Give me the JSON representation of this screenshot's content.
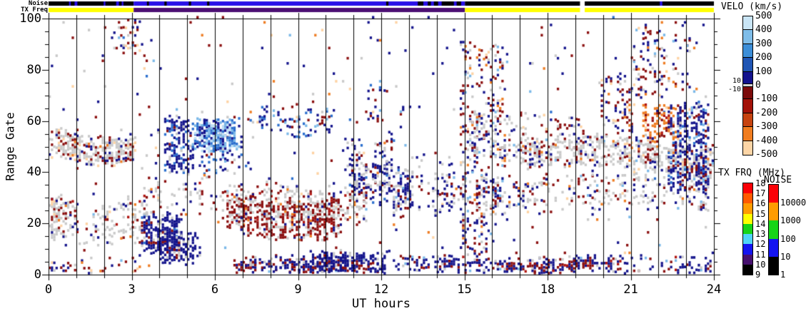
{
  "strips": {
    "noise": {
      "label": "Noise",
      "segments": [
        {
          "u0": 0,
          "u1": 3.07,
          "color": "#000000"
        },
        {
          "u0": 3.07,
          "u1": 15.02,
          "color": "#2a12e8"
        },
        {
          "u0": 15.02,
          "u1": 19.17,
          "color": "#000000"
        },
        {
          "u0": 19.34,
          "u1": 24,
          "color": "#000000"
        }
      ],
      "dashes": [
        {
          "u0": 0.74,
          "u1": 0.8,
          "color": "#2a12e8"
        },
        {
          "u0": 0.94,
          "u1": 1.04,
          "color": "#2a12e8"
        },
        {
          "u0": 1.99,
          "u1": 2.05,
          "color": "#2a12e8"
        },
        {
          "u0": 2.44,
          "u1": 2.54,
          "color": "#2a12e8"
        },
        {
          "u0": 2.64,
          "u1": 2.7,
          "color": "#2a12e8"
        },
        {
          "u0": 3.55,
          "u1": 3.62,
          "color": "#000000"
        },
        {
          "u0": 4.18,
          "u1": 4.26,
          "color": "#000000"
        },
        {
          "u0": 5.06,
          "u1": 5.14,
          "color": "#000000"
        },
        {
          "u0": 5.72,
          "u1": 5.8,
          "color": "#000000"
        },
        {
          "u0": 12.18,
          "u1": 12.26,
          "color": "#000000"
        },
        {
          "u0": 13.32,
          "u1": 13.52,
          "color": "#000000"
        },
        {
          "u0": 13.68,
          "u1": 13.79,
          "color": "#000000"
        },
        {
          "u0": 13.9,
          "u1": 14.05,
          "color": "#000000"
        },
        {
          "u0": 14.18,
          "u1": 14.62,
          "color": "#000000"
        },
        {
          "u0": 14.72,
          "u1": 14.88,
          "color": "#000000"
        },
        {
          "u0": 22.05,
          "u1": 22.14,
          "color": "#2a12e8"
        }
      ]
    },
    "txfreq": {
      "label": "TX Freq",
      "segments": [
        {
          "u0": 0,
          "u1": 3.07,
          "color": "#ffff00"
        },
        {
          "u0": 3.07,
          "u1": 15.02,
          "color": "#4c0f73"
        },
        {
          "u0": 15.02,
          "u1": 19.17,
          "color": "#ffff00"
        },
        {
          "u0": 19.34,
          "u1": 24,
          "color": "#ffff00"
        }
      ],
      "dashes": []
    }
  },
  "axes": {
    "x": {
      "title": "UT hours",
      "min": 0,
      "max": 24,
      "major_ticks": [
        0,
        3,
        6,
        9,
        12,
        15,
        18,
        21,
        24
      ],
      "minor_step": 1
    },
    "y": {
      "title": "Range Gate",
      "min": 0,
      "max": 100,
      "major_ticks": [
        0,
        20,
        40,
        60,
        80,
        100
      ],
      "minor_step": 5
    }
  },
  "colorbars": {
    "velo": {
      "title": "VELO (km/s)",
      "tick_labels": [
        "500",
        "400",
        "300",
        "200",
        "100",
        "0",
        "-100",
        "-200",
        "-300",
        "-400",
        "-500"
      ],
      "tick_values": [
        500,
        400,
        300,
        200,
        100,
        0,
        -100,
        -200,
        -300,
        -400,
        -500
      ],
      "near_zero_labels": [
        "10",
        "-10"
      ],
      "segments": [
        {
          "from": 500,
          "to": 400,
          "color": "#c9e5f6"
        },
        {
          "from": 400,
          "to": 300,
          "color": "#7fbde9"
        },
        {
          "from": 300,
          "to": 200,
          "color": "#3c8ed8"
        },
        {
          "from": 200,
          "to": 100,
          "color": "#1f55b4"
        },
        {
          "from": 100,
          "to": 10,
          "color": "#13128e"
        },
        {
          "from": 10,
          "to": -10,
          "color": "#d4d4d4"
        },
        {
          "from": -10,
          "to": -100,
          "color": "#7c0a0a"
        },
        {
          "from": -100,
          "to": -200,
          "color": "#a31208"
        },
        {
          "from": -200,
          "to": -300,
          "color": "#c64310"
        },
        {
          "from": -300,
          "to": -400,
          "color": "#f07d20"
        },
        {
          "from": -400,
          "to": -500,
          "color": "#fcd5a6"
        }
      ]
    },
    "txfrq": {
      "title": "TX FRQ (MHz)",
      "tick_labels": [
        "18",
        "17",
        "16",
        "15",
        "14",
        "13",
        "12",
        "11",
        "10",
        "9"
      ],
      "segments": [
        {
          "color": "#fb0006"
        },
        {
          "color": "#ff5a00"
        },
        {
          "color": "#ff9c00"
        },
        {
          "color": "#ffff00"
        },
        {
          "color": "#17d417"
        },
        {
          "color": "#4fd4f7"
        },
        {
          "color": "#1414f0"
        },
        {
          "color": "#46106e"
        },
        {
          "color": "#000000"
        }
      ]
    },
    "noise": {
      "title": "NOISE",
      "tick_labels": [
        "10000",
        "1000",
        "100",
        "10",
        "1"
      ],
      "segments": [
        {
          "color": "#fb0006"
        },
        {
          "color": "#ff9c00"
        },
        {
          "color": "#17d417"
        },
        {
          "color": "#1414f0"
        },
        {
          "color": "#000000"
        }
      ]
    }
  },
  "chart_data": {
    "type": "heatmap",
    "title": "",
    "xlabel": "UT hours",
    "ylabel": "Range Gate",
    "xlim": [
      0,
      24
    ],
    "ylim": [
      0,
      100
    ],
    "x_ticks": [
      0,
      3,
      6,
      9,
      12,
      15,
      18,
      21,
      24
    ],
    "y_ticks": [
      0,
      20,
      40,
      60,
      80,
      100
    ],
    "hour_gridlines": true,
    "legend_position": "right",
    "cell_hours": 0.083333,
    "cell_gates": 1,
    "palette": {
      "navy": "#14148c",
      "blue": "#2b6fce",
      "lblue": "#7ab8e8",
      "vlblue": "#bcdef5",
      "dred": "#8b0f0f",
      "red": "#b01510",
      "orange": "#ee7c22",
      "peach": "#fed2a2",
      "gray": "#c9c9c9"
    },
    "global_noise": {
      "d": 0.013,
      "c": {
        "navy": 0.3,
        "dred": 0.3,
        "gray": 0.14,
        "orange": 0.08,
        "peach": 0.08,
        "lblue": 0.06,
        "blue": 0.04
      }
    },
    "regions": [
      {
        "u0": 0,
        "u1": 3.4,
        "g0": 13,
        "g1": 30,
        "d": 0.55,
        "w": 3,
        "c": {
          "gray": 0.68,
          "dred": 0.13,
          "navy": 0.09,
          "red": 0.05,
          "orange": 0.03,
          "peach": 0.02
        }
      },
      {
        "u0": 0,
        "u1": 3.2,
        "g0": 45,
        "g1": 56,
        "d": 0.5,
        "w": 3,
        "c": {
          "gray": 0.58,
          "dred": 0.2,
          "navy": 0.12,
          "orange": 0.05,
          "peach": 0.05
        }
      },
      {
        "u0": 0,
        "u1": 3.4,
        "g0": 0,
        "g1": 4,
        "d": 0.3,
        "w": 1,
        "c": {
          "navy": 0.3,
          "dred": 0.3,
          "gray": 0.22,
          "orange": 0.1,
          "peach": 0.08
        }
      },
      {
        "u0": 2.3,
        "u1": 3.4,
        "g0": 86,
        "g1": 100,
        "d": 0.28,
        "w": 1,
        "c": {
          "navy": 0.28,
          "dred": 0.26,
          "gray": 0.2,
          "lblue": 0.1,
          "blue": 0.08,
          "peach": 0.08
        }
      },
      {
        "u0": 3.3,
        "u1": 4.8,
        "g0": 9,
        "g1": 24,
        "d": 0.5,
        "w": 3,
        "c": {
          "navy": 0.76,
          "dred": 0.1,
          "gray": 0.1,
          "blue": 0.04
        }
      },
      {
        "u0": 3.9,
        "u1": 5.5,
        "g0": 4,
        "g1": 16,
        "d": 0.45,
        "w": 2,
        "c": {
          "navy": 0.8,
          "dred": 0.1,
          "gray": 0.1
        }
      },
      {
        "u0": 4.2,
        "u1": 7.4,
        "g0": 40,
        "g1": 62,
        "d": 0.55,
        "w": 3,
        "c": {
          "navy": 0.62,
          "blue": 0.18,
          "dred": 0.1,
          "gray": 0.07,
          "lblue": 0.03
        }
      },
      {
        "u0": 5.2,
        "u1": 6.8,
        "g0": 48,
        "g1": 60,
        "d": 0.62,
        "w": 2,
        "c": {
          "lblue": 0.33,
          "blue": 0.3,
          "vlblue": 0.2,
          "navy": 0.17
        }
      },
      {
        "u0": 3.4,
        "u1": 11.6,
        "g0": 23,
        "g1": 38,
        "d": 0.5,
        "w": 4,
        "c": {
          "gray": 0.56,
          "dred": 0.25,
          "navy": 0.1,
          "red": 0.04,
          "orange": 0.03,
          "peach": 0.02
        }
      },
      {
        "u0": 6.3,
        "u1": 10.6,
        "g0": 16,
        "g1": 31,
        "d": 0.45,
        "w": 3,
        "c": {
          "dred": 0.55,
          "gray": 0.25,
          "red": 0.1,
          "navy": 0.07,
          "orange": 0.03
        }
      },
      {
        "u0": 6.7,
        "u1": 9.3,
        "g0": 0,
        "g1": 4,
        "d": 0.7,
        "w": 1,
        "c": {
          "dred": 0.55,
          "navy": 0.25,
          "red": 0.1,
          "gray": 0.1
        }
      },
      {
        "u0": 9.3,
        "u1": 10.6,
        "g0": 1,
        "g1": 4,
        "d": 0.4,
        "w": 1,
        "c": {
          "dred": 0.8,
          "navy": 0.2
        }
      },
      {
        "u0": 7.1,
        "u1": 24,
        "g0": 0,
        "g1": 6,
        "d": 0.5,
        "w": 1,
        "c": {
          "navy": 0.6,
          "dred": 0.2,
          "gray": 0.13,
          "red": 0.04,
          "lblue": 0.03
        }
      },
      {
        "u0": 9.3,
        "u1": 12.3,
        "g0": 0,
        "g1": 8,
        "d": 0.5,
        "w": 2,
        "c": {
          "navy": 0.8,
          "dred": 0.1,
          "gray": 0.1
        }
      },
      {
        "u0": 17.2,
        "u1": 19.4,
        "g0": 0,
        "g1": 5,
        "d": 0.3,
        "w": 1,
        "c": {
          "dred": 0.7,
          "red": 0.2,
          "navy": 0.1
        }
      },
      {
        "u0": 10.6,
        "u1": 12.6,
        "g0": 38,
        "g1": 55,
        "d": 0.32,
        "w": 3,
        "c": {
          "navy": 0.5,
          "dred": 0.2,
          "gray": 0.2,
          "blue": 0.05,
          "orange": 0.05
        }
      },
      {
        "u0": 10.8,
        "u1": 13.2,
        "g0": 28,
        "g1": 45,
        "d": 0.42,
        "w": 3,
        "c": {
          "navy": 0.6,
          "gray": 0.25,
          "dred": 0.1,
          "blue": 0.05
        }
      },
      {
        "u0": 12.4,
        "u1": 15.0,
        "g0": 22,
        "g1": 38,
        "d": 0.42,
        "w": 3,
        "c": {
          "navy": 0.45,
          "gray": 0.35,
          "dred": 0.15,
          "lblue": 0.05
        }
      },
      {
        "u0": 11.0,
        "u1": 15.0,
        "g0": 31,
        "g1": 45,
        "d": 0.3,
        "w": 4,
        "c": {
          "gray": 0.7,
          "dred": 0.15,
          "navy": 0.15
        }
      },
      {
        "u0": 14.8,
        "u1": 16.6,
        "g0": 40,
        "g1": 90,
        "d": 0.2,
        "w": 2,
        "c": {
          "navy": 0.3,
          "dred": 0.3,
          "gray": 0.2,
          "orange": 0.07,
          "lblue": 0.07,
          "peach": 0.06
        }
      },
      {
        "u0": 14.8,
        "u1": 16.2,
        "g0": 6,
        "g1": 40,
        "d": 0.22,
        "w": 2,
        "c": {
          "navy": 0.4,
          "dred": 0.35,
          "gray": 0.15,
          "orange": 0.05,
          "lblue": 0.05
        }
      },
      {
        "u0": 15.2,
        "u1": 17.3,
        "g0": 44,
        "g1": 62,
        "d": 0.45,
        "w": 3,
        "c": {
          "gray": 0.64,
          "navy": 0.15,
          "dred": 0.13,
          "lblue": 0.04,
          "orange": 0.04
        }
      },
      {
        "u0": 15.4,
        "u1": 24,
        "g0": 23,
        "g1": 37,
        "d": 0.38,
        "w": 3,
        "c": {
          "gray": 0.44,
          "dred": 0.26,
          "navy": 0.2,
          "orange": 0.04,
          "lblue": 0.03,
          "peach": 0.03
        }
      },
      {
        "u0": 17.0,
        "u1": 24,
        "g0": 40,
        "g1": 52,
        "d": 0.4,
        "w": 3,
        "c": {
          "gray": 0.6,
          "dred": 0.15,
          "navy": 0.15,
          "orange": 0.04,
          "lblue": 0.03,
          "peach": 0.03
        }
      },
      {
        "u0": 19.8,
        "u1": 21.2,
        "g0": 55,
        "g1": 78,
        "d": 0.16,
        "w": 2,
        "c": {
          "dred": 0.38,
          "navy": 0.3,
          "peach": 0.12,
          "orange": 0.1,
          "gray": 0.1
        }
      },
      {
        "u0": 21.4,
        "u1": 22.8,
        "g0": 52,
        "g1": 67,
        "d": 0.5,
        "w": 2,
        "c": {
          "orange": 0.5,
          "red": 0.18,
          "dred": 0.15,
          "peach": 0.12,
          "navy": 0.05
        }
      },
      {
        "u0": 22.3,
        "u1": 23.8,
        "g0": 33,
        "g1": 68,
        "d": 0.42,
        "w": 3,
        "c": {
          "navy": 0.6,
          "dred": 0.15,
          "blue": 0.1,
          "gray": 0.1,
          "lblue": 0.05
        }
      },
      {
        "u0": 21.0,
        "u1": 23.4,
        "g0": 68,
        "g1": 96,
        "d": 0.14,
        "w": 2,
        "c": {
          "navy": 0.34,
          "dred": 0.3,
          "orange": 0.12,
          "lblue": 0.1,
          "gray": 0.09,
          "peach": 0.05
        }
      },
      {
        "u0": 7.5,
        "u1": 10.4,
        "g0": 55,
        "g1": 66,
        "d": 0.17,
        "w": 2,
        "c": {
          "navy": 0.5,
          "blue": 0.2,
          "lblue": 0.15,
          "dred": 0.15
        }
      },
      {
        "u0": 11.4,
        "u1": 13.2,
        "g0": 58,
        "g1": 74,
        "d": 0.12,
        "w": 2,
        "c": {
          "navy": 0.5,
          "blue": 0.15,
          "lblue": 0.12,
          "dred": 0.23
        }
      },
      {
        "u0": 17.5,
        "u1": 19.5,
        "g0": 55,
        "g1": 62,
        "d": 0.12,
        "w": 2,
        "c": {
          "dred": 0.4,
          "navy": 0.35,
          "gray": 0.15,
          "peach": 0.1
        }
      }
    ]
  }
}
